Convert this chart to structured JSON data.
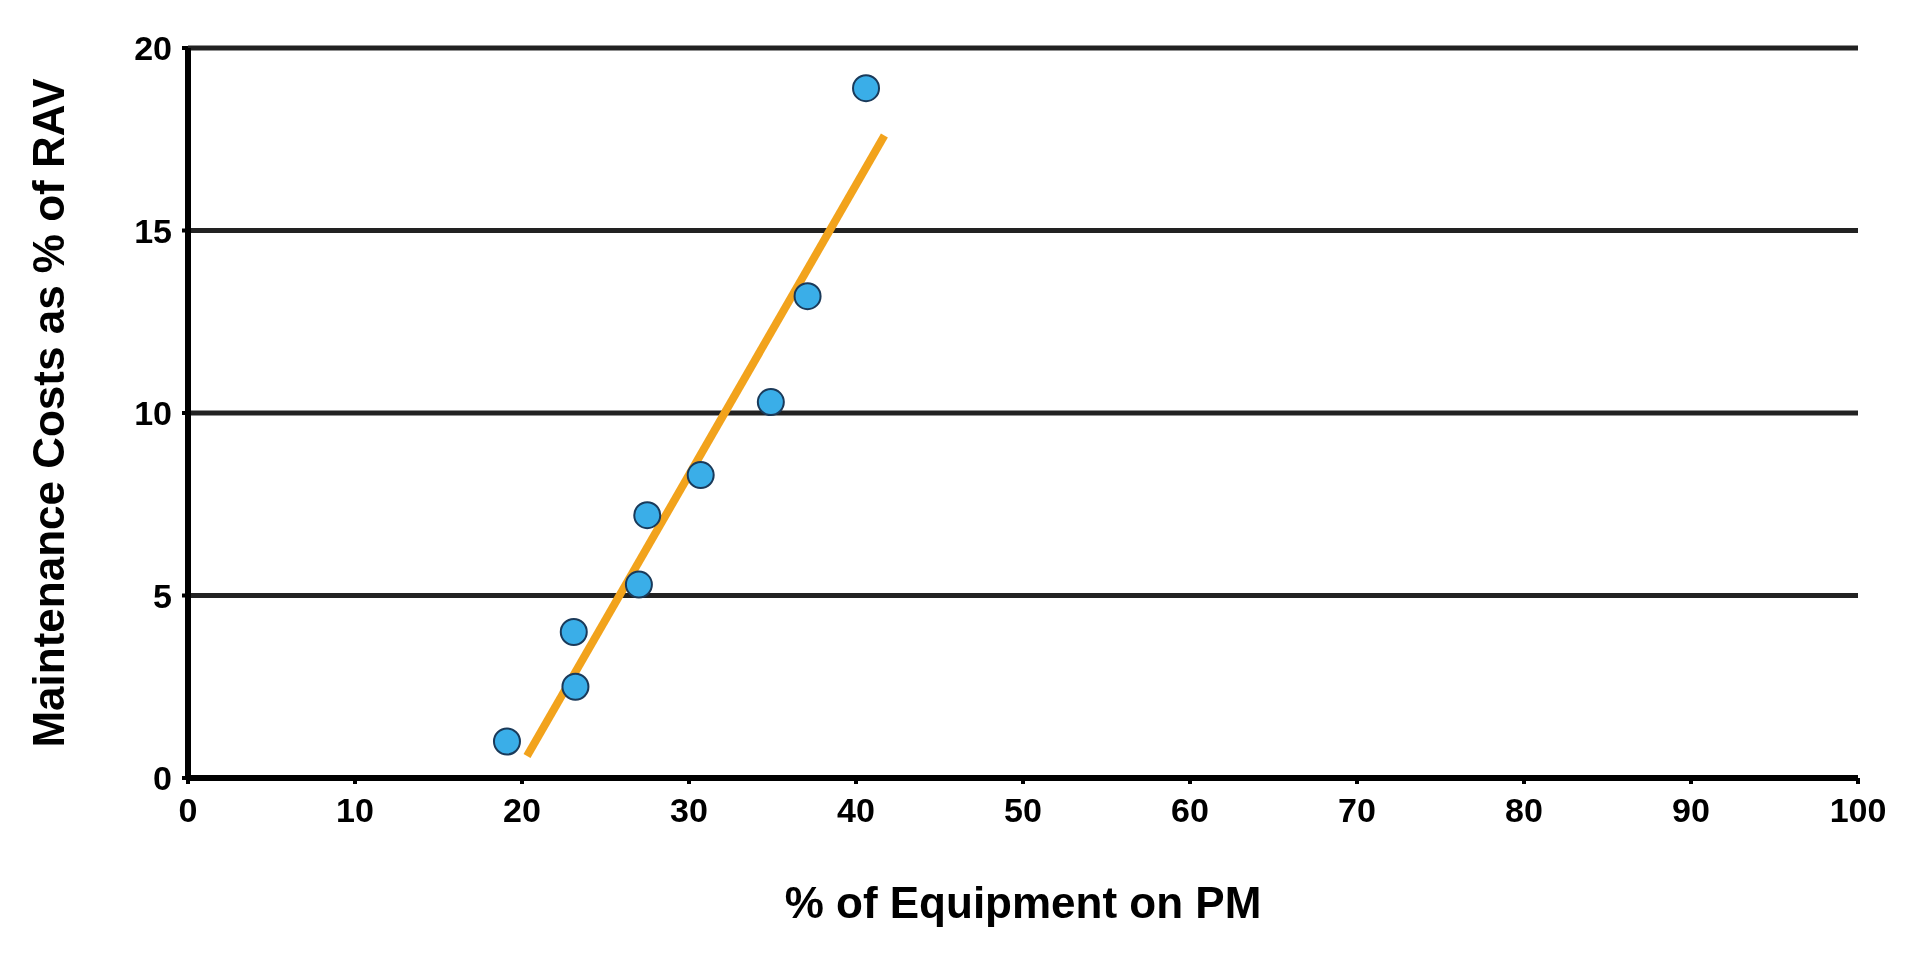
{
  "chart_data": {
    "type": "scatter",
    "xlabel": "% of Equipment on PM",
    "ylabel": "Maintenance Costs as % of RAV",
    "xlim": [
      0,
      100
    ],
    "xticks": [
      0,
      10,
      20,
      30,
      40,
      50,
      60,
      70,
      80,
      90,
      100
    ],
    "ylim": [
      0,
      20
    ],
    "yticks": [
      0,
      5,
      10,
      15,
      20
    ],
    "grid": "y",
    "marker": "circle",
    "series": [
      {
        "color": "#3aaee8",
        "x": [
          19.1,
          23.2,
          23.1,
          27.0,
          27.5,
          30.7,
          34.9,
          37.1,
          40.6
        ],
        "values": [
          1.0,
          2.5,
          4.0,
          5.3,
          7.2,
          8.3,
          10.3,
          13.2,
          18.9
        ]
      },
      {
        "type": "line",
        "marker": "none",
        "color": "#f2a31c",
        "x": [
          20.3,
          41.7
        ],
        "values": [
          0.6,
          17.6
        ]
      }
    ]
  }
}
